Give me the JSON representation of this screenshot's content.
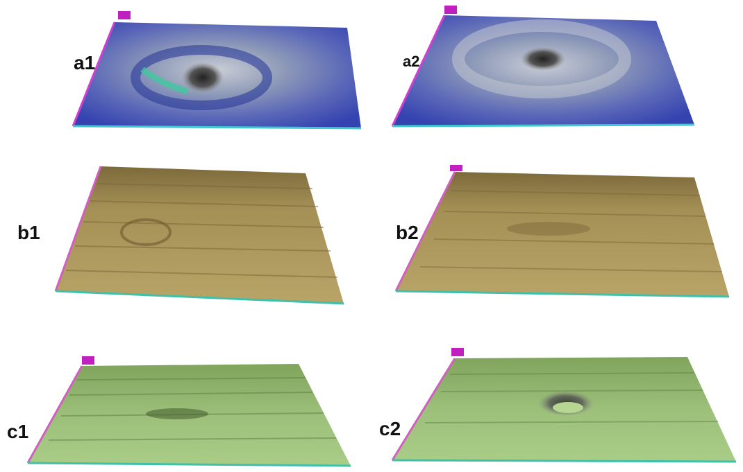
{
  "panels": [
    {
      "label": "a1"
    },
    {
      "label": "a2"
    },
    {
      "label": "b1"
    },
    {
      "label": "b2"
    },
    {
      "label": "c1"
    },
    {
      "label": "c2"
    }
  ]
}
